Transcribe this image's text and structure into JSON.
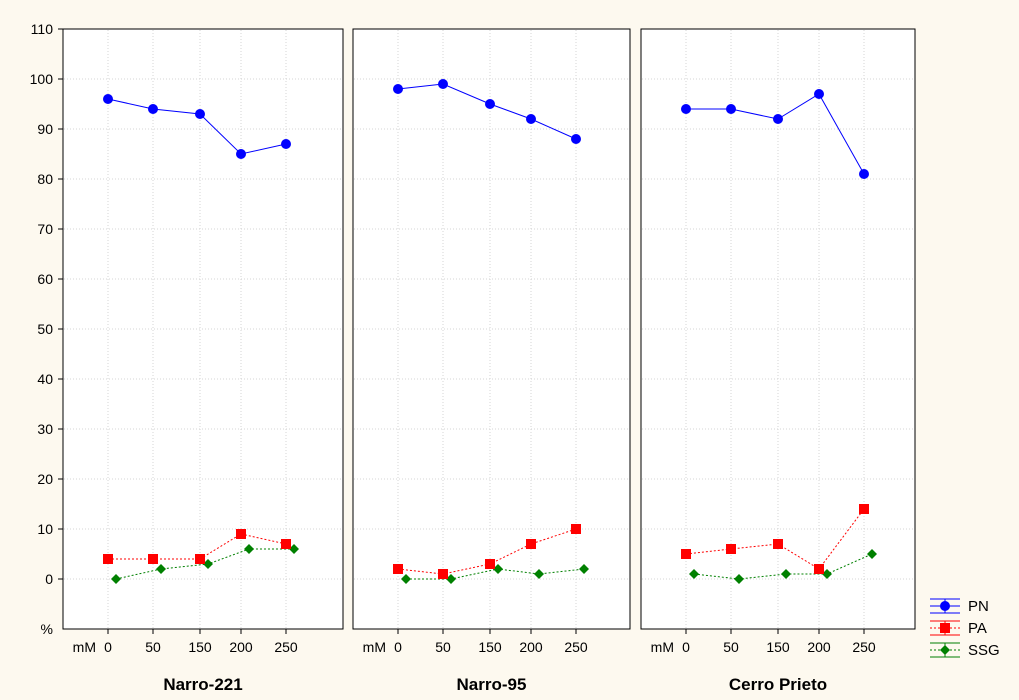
{
  "chart_data": {
    "type": "line",
    "ylabel": "%",
    "ylim": [
      0,
      110
    ],
    "yticks": [
      0,
      10,
      20,
      30,
      40,
      50,
      60,
      70,
      80,
      90,
      100,
      110
    ],
    "x_unit": "mM",
    "categories": [
      "0",
      "50",
      "150",
      "200",
      "250"
    ],
    "grid": true,
    "legend_position": "bottom-right",
    "legend": [
      {
        "name": "PN",
        "color": "#0000ff",
        "marker": "circle",
        "line": "solid"
      },
      {
        "name": "PA",
        "color": "#ff0000",
        "marker": "square",
        "line": "dotted"
      },
      {
        "name": "SSG",
        "color": "#008000",
        "marker": "diamond",
        "line": "dotted"
      }
    ],
    "panels": [
      {
        "title": "Narro-221",
        "series": [
          {
            "name": "PN",
            "values": [
              96,
              94,
              93,
              85,
              87
            ]
          },
          {
            "name": "PA",
            "values": [
              4,
              4,
              4,
              9,
              7
            ]
          },
          {
            "name": "SSG",
            "values": [
              0,
              2,
              3,
              6,
              6
            ]
          }
        ]
      },
      {
        "title": "Narro-95",
        "series": [
          {
            "name": "PN",
            "values": [
              98,
              99,
              95,
              92,
              88
            ]
          },
          {
            "name": "PA",
            "values": [
              2,
              1,
              3,
              7,
              10
            ]
          },
          {
            "name": "SSG",
            "values": [
              0,
              0,
              2,
              1,
              2
            ]
          }
        ]
      },
      {
        "title": "Cerro Prieto",
        "series": [
          {
            "name": "PN",
            "values": [
              94,
              94,
              92,
              97,
              81
            ]
          },
          {
            "name": "PA",
            "values": [
              5,
              6,
              7,
              2,
              14
            ]
          },
          {
            "name": "SSG",
            "values": [
              1,
              0,
              1,
              1,
              5
            ]
          }
        ]
      }
    ]
  }
}
